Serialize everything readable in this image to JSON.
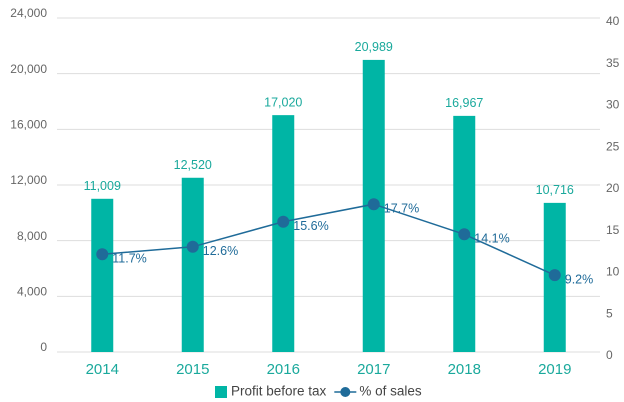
{
  "chart_data": {
    "type": "bar",
    "categories": [
      "2014",
      "2015",
      "2016",
      "2017",
      "2018",
      "2019"
    ],
    "series": [
      {
        "name": "Profit before tax",
        "type": "bar",
        "color": "#00b5a5",
        "values": [
          11009,
          12520,
          17020,
          20989,
          16967,
          10716
        ],
        "value_labels": [
          "11,009",
          "12,520",
          "17,020",
          "20,989",
          "16,967",
          "10,716"
        ]
      },
      {
        "name": "% of sales",
        "type": "line",
        "axis": "y2",
        "color": "#1f6b99",
        "values": [
          11.7,
          12.6,
          15.6,
          17.7,
          14.1,
          9.2
        ],
        "value_labels": [
          "11.7%",
          "12.6%",
          "15.6%",
          "17.7%",
          "14.1%",
          "9.2%"
        ]
      }
    ],
    "ylim": [
      0,
      24000
    ],
    "yticks": [
      0,
      {
        "value": 4000,
        "label": "4,000"
      },
      {
        "value": 8000,
        "label": "8,000"
      },
      {
        "value": 12000,
        "label": "12,000"
      },
      {
        "value": 16000,
        "label": "16,000"
      },
      {
        "value": 20000,
        "label": "20,000"
      },
      {
        "value": 24000,
        "label": "24,000"
      }
    ],
    "y2lim": [
      0,
      40
    ],
    "y2ticks": [
      0,
      5,
      10,
      15,
      20,
      25,
      30,
      35,
      40
    ],
    "grid": true,
    "legend": "bottom"
  }
}
